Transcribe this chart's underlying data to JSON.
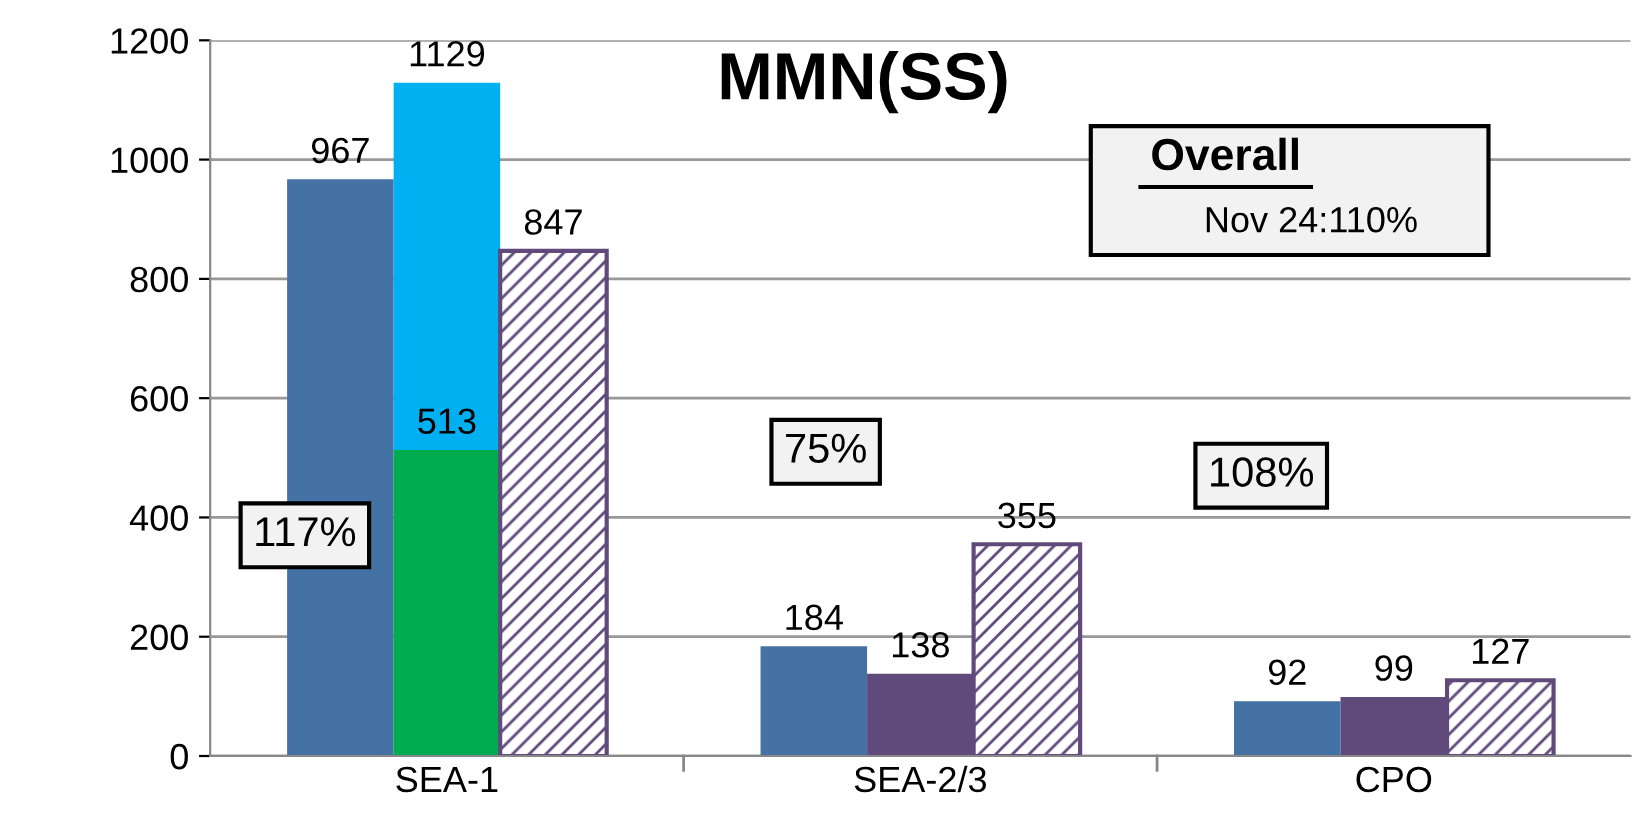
{
  "chart_data": {
    "type": "bar",
    "title": "MMN(SS)",
    "categories": [
      "SEA-1",
      "SEA-2/3",
      "CPO"
    ],
    "series": [
      {
        "color": "#4472a4",
        "values": [
          967,
          184,
          92
        ],
        "value_labels": [
          "967",
          "184",
          "92"
        ]
      },
      {
        "colors": [
          "#00ac4f",
          "#604a7b",
          "#604a7b"
        ],
        "values": [
          513,
          138,
          99
        ],
        "value_labels": [
          "513",
          "138",
          "99"
        ]
      },
      {
        "color": "#00b0f0",
        "base": [
          513,
          null,
          null
        ],
        "values": [
          616,
          null,
          null
        ],
        "value_labels": [
          "1129",
          null,
          null
        ]
      },
      {
        "color": "#604a7b",
        "values": [
          847,
          355,
          127
        ],
        "value_labels": [
          "847",
          "355",
          "127"
        ]
      }
    ],
    "ylim": [
      0,
      1200
    ],
    "yticks": [
      0,
      200,
      400,
      600,
      800,
      1000,
      1200
    ],
    "grid": "y",
    "annotations": [
      "117%",
      "75%",
      "108%",
      "Overall",
      "Nov 24:110%"
    ]
  }
}
